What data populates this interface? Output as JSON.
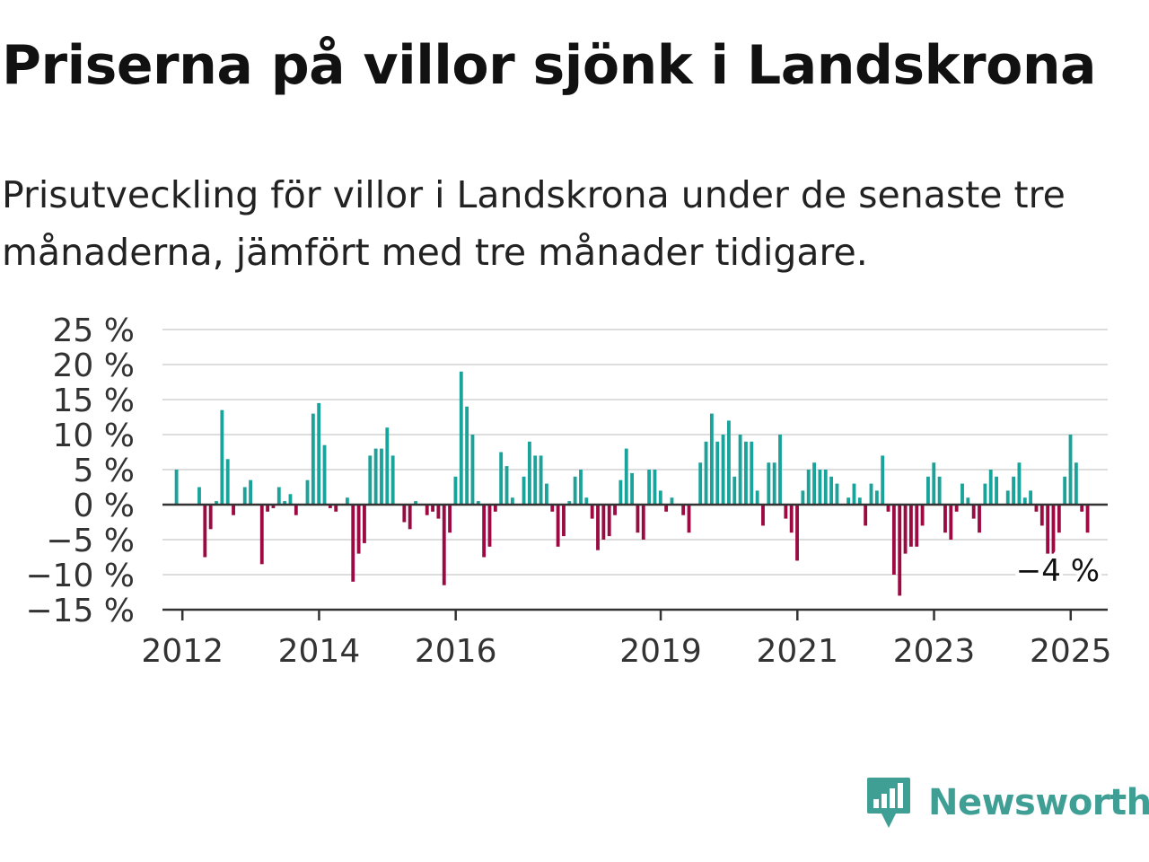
{
  "header": {
    "title": "Priserna på villor sjönk i Landskrona",
    "subtitle": "Prisutveckling för villor i Landskrona under de senaste tre månaderna, jämfört med tre månader tidigare."
  },
  "brand": {
    "name": "Newsworthy",
    "icon": "newsworthy-logo-icon",
    "color": "#3f9f95"
  },
  "colors": {
    "positive": "#1aa39a",
    "negative": "#9b0a42",
    "grid": "#dddddd",
    "axis": "#333333"
  },
  "chart_data": {
    "type": "bar",
    "title": "Priserna på villor sjönk i Landskrona",
    "subtitle": "Prisutveckling för villor i Landskrona under de senaste tre månaderna, jämfört med tre månader tidigare.",
    "xlabel": "",
    "ylabel": "",
    "unit": "%",
    "ylim": [
      -15,
      25
    ],
    "yticks": [
      25,
      20,
      15,
      10,
      5,
      0,
      -5,
      -10,
      -15
    ],
    "ytick_labels": [
      "25 %",
      "20 %",
      "15 %",
      "10 %",
      "5 %",
      "0 %",
      "−5 %",
      "−10 %",
      "−15 %"
    ],
    "xticks": [
      2012,
      2014,
      2016,
      2019,
      2021,
      2023,
      2025
    ],
    "xtick_labels": [
      "2012",
      "2014",
      "2016",
      "2019",
      "2021",
      "2023",
      "2025"
    ],
    "x_start": "2011-10",
    "grid": true,
    "last_value_label": "−4 %",
    "values": [
      0,
      0,
      5,
      0,
      0,
      0,
      2.5,
      -7.5,
      -3.5,
      0.5,
      13.5,
      6.5,
      -1.5,
      0,
      2.5,
      3.5,
      0,
      -8.5,
      -1,
      -0.5,
      2.5,
      0.5,
      1.5,
      -1.5,
      0,
      3.5,
      13,
      14.5,
      8.5,
      -0.5,
      -1,
      0,
      1,
      -11,
      -7,
      -5.5,
      7,
      8,
      8,
      11,
      7,
      0,
      -2.5,
      -3.5,
      0.5,
      0,
      -1.5,
      -1,
      -2,
      -11.5,
      -4,
      4,
      19,
      14,
      10,
      0.5,
      -7.5,
      -6,
      -1,
      7.5,
      5.5,
      1,
      0,
      4,
      9,
      7,
      7,
      3,
      -1,
      -6,
      -4.5,
      0.5,
      4,
      5,
      1,
      -2,
      -6.5,
      -5,
      -4.5,
      -1.5,
      3.5,
      8,
      4.5,
      -4,
      -5,
      5,
      5,
      2,
      -1,
      1,
      0,
      -1.5,
      -4,
      0,
      6,
      9,
      13,
      9,
      10,
      12,
      4,
      10,
      9,
      9,
      2,
      -3,
      6,
      6,
      10,
      -2,
      -4,
      -8,
      2,
      5,
      6,
      5,
      5,
      4,
      3,
      0,
      1,
      3,
      1,
      -3,
      3,
      2,
      7,
      -1,
      -10,
      -13,
      -7,
      -6,
      -6,
      -3,
      4,
      6,
      4,
      -4,
      -5,
      -1,
      3,
      1,
      -2,
      -4,
      3,
      5,
      4,
      0,
      2,
      4,
      6,
      1,
      2,
      -1,
      -3,
      -7,
      -7,
      -4,
      4,
      10,
      6,
      -1,
      -4
    ]
  }
}
